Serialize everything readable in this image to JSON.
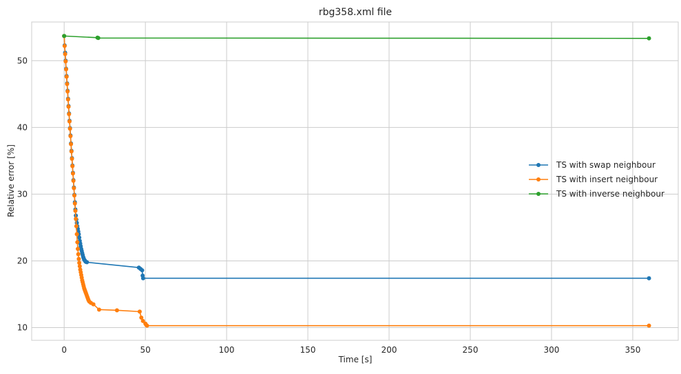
{
  "chart_data": {
    "type": "line",
    "title": "rbg358.xml file",
    "xlabel": "Time [s]",
    "ylabel": "Relative error [%]",
    "xlim": [
      -20,
      378
    ],
    "ylim": [
      8.1,
      55.8
    ],
    "xticks": [
      0,
      50,
      100,
      150,
      200,
      250,
      300,
      350
    ],
    "yticks": [
      10,
      20,
      30,
      40,
      50
    ],
    "grid": true,
    "legend_position": "center-right",
    "series": [
      {
        "name": "TS with swap neighbour",
        "color": "#1f77b4",
        "x": [
          0,
          0.3,
          0.6,
          0.9,
          1.2,
          1.5,
          1.8,
          2.1,
          2.4,
          2.7,
          3.0,
          3.3,
          3.6,
          3.9,
          4.2,
          4.5,
          4.8,
          5.1,
          5.4,
          5.7,
          6.0,
          6.3,
          6.6,
          6.9,
          7.2,
          7.5,
          7.8,
          8.1,
          8.4,
          8.7,
          9.0,
          9.3,
          9.6,
          9.9,
          10.2,
          10.5,
          10.8,
          11.1,
          11.4,
          11.7,
          12.0,
          12.3,
          12.6,
          12.9,
          13.2,
          13.5,
          14.0,
          46.0,
          47.0,
          48.0,
          48.3,
          48.6,
          360.0
        ],
        "y": [
          53.7,
          52.3,
          51.2,
          50.0,
          48.8,
          47.7,
          46.6,
          45.5,
          44.3,
          43.2,
          42.1,
          41.0,
          39.9,
          38.8,
          37.6,
          36.5,
          35.4,
          34.3,
          33.2,
          32.1,
          31.0,
          29.9,
          28.8,
          27.7,
          26.8,
          26.2,
          25.7,
          25.2,
          24.8,
          24.4,
          24.0,
          23.5,
          23.0,
          22.6,
          22.2,
          21.8,
          21.5,
          21.2,
          20.9,
          20.6,
          20.4,
          20.2,
          20.1,
          20.0,
          19.9,
          19.85,
          19.8,
          19.0,
          18.8,
          18.6,
          17.8,
          17.4,
          17.4
        ]
      },
      {
        "name": "TS with insert neighbour",
        "color": "#ff7f0e",
        "x": [
          0,
          0.3,
          0.6,
          0.9,
          1.2,
          1.5,
          1.8,
          2.1,
          2.4,
          2.7,
          3.0,
          3.3,
          3.6,
          3.9,
          4.2,
          4.5,
          4.8,
          5.1,
          5.4,
          5.7,
          6.0,
          6.3,
          6.6,
          6.9,
          7.2,
          7.5,
          7.8,
          8.1,
          8.4,
          8.7,
          9.0,
          9.3,
          9.6,
          9.9,
          10.2,
          10.5,
          10.8,
          11.1,
          11.4,
          11.7,
          12.0,
          12.3,
          12.6,
          12.9,
          13.2,
          13.5,
          13.8,
          14.1,
          14.4,
          14.7,
          15.0,
          15.5,
          16.5,
          18.0,
          21.5,
          32.5,
          46.5,
          47.5,
          48.5,
          50.0,
          50.5,
          51.0,
          360.0
        ],
        "y": [
          53.7,
          52.2,
          51.0,
          49.9,
          48.7,
          47.6,
          46.5,
          45.4,
          44.2,
          43.1,
          42.0,
          40.9,
          39.8,
          38.7,
          37.5,
          36.4,
          35.3,
          34.2,
          33.1,
          32.0,
          30.9,
          29.8,
          28.6,
          27.5,
          26.3,
          25.2,
          24.0,
          22.8,
          21.8,
          21.0,
          20.3,
          19.7,
          19.2,
          18.7,
          18.3,
          17.9,
          17.5,
          17.1,
          16.8,
          16.5,
          16.2,
          15.9,
          15.7,
          15.5,
          15.3,
          15.1,
          14.9,
          14.7,
          14.5,
          14.3,
          14.1,
          13.9,
          13.7,
          13.5,
          12.7,
          12.6,
          12.4,
          11.5,
          11.0,
          10.6,
          10.4,
          10.3,
          10.3
        ]
      },
      {
        "name": "TS with inverse neighbour",
        "color": "#2ca02c",
        "x": [
          0,
          20.5,
          21.0,
          360.0
        ],
        "y": [
          53.7,
          53.45,
          53.4,
          53.35
        ]
      }
    ]
  }
}
